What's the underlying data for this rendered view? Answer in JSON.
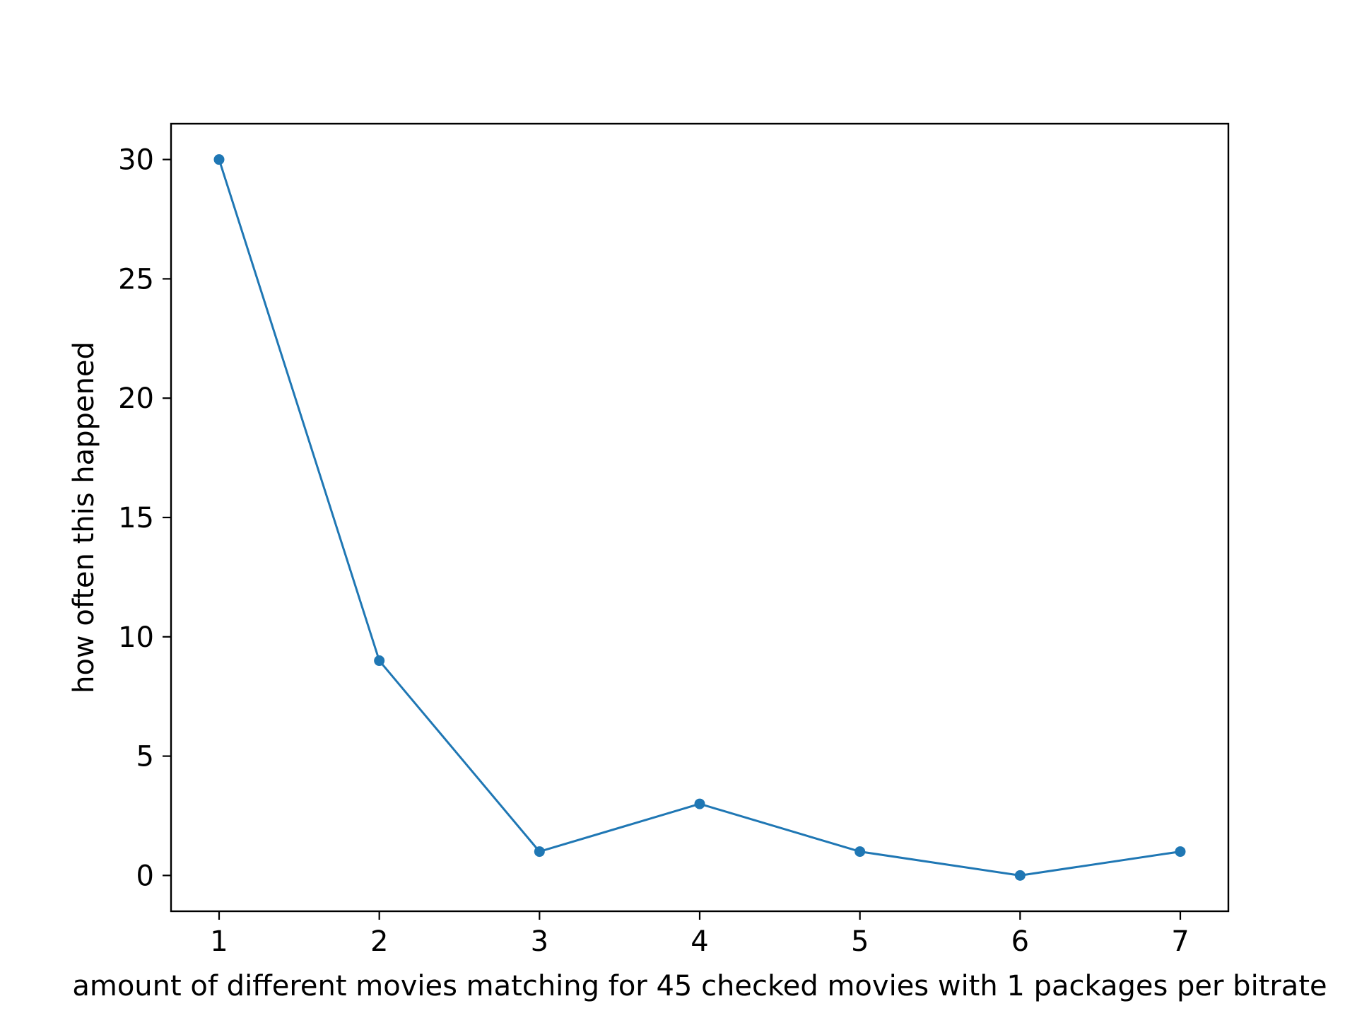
{
  "chart_data": {
    "type": "line",
    "title": "",
    "xlabel": "amount of different movies matching for 45 checked movies with 1 packages per bitrate",
    "ylabel": "how often this happened",
    "x": [
      1,
      2,
      3,
      4,
      5,
      6,
      7
    ],
    "series": [
      {
        "values": [
          30,
          9,
          1,
          3,
          1,
          0,
          1
        ],
        "color": "#1f77b4",
        "marker": "circle"
      }
    ],
    "xticks": [
      "1",
      "2",
      "3",
      "4",
      "5",
      "6",
      "7"
    ],
    "yticks": [
      "0",
      "5",
      "10",
      "15",
      "20",
      "25",
      "30"
    ],
    "xlim": [
      0.7,
      7.3
    ],
    "ylim": [
      -1.5,
      31.5
    ],
    "grid": false,
    "legend": "none"
  }
}
